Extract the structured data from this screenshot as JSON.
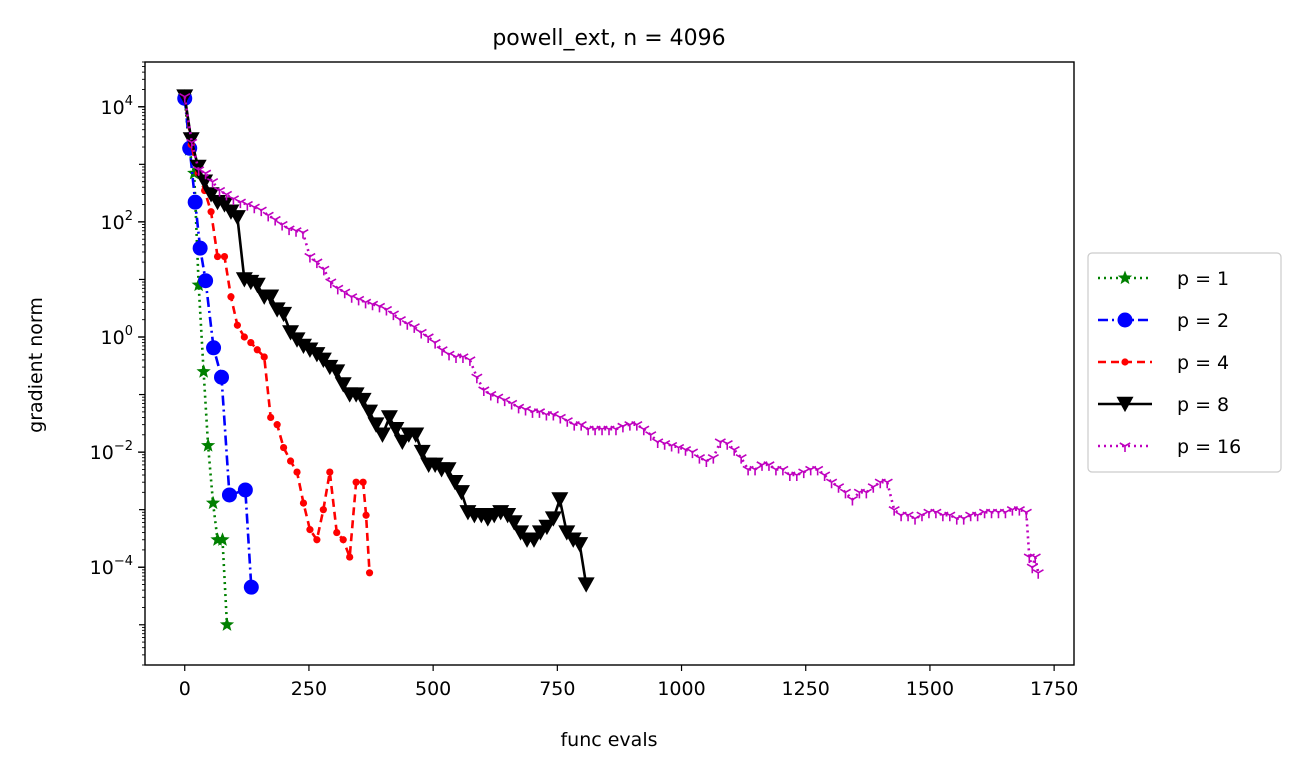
{
  "chart_data": {
    "type": "line",
    "title": "powell_ext, n = 4096",
    "xlabel": "func evals",
    "ylabel": "gradient norm",
    "xlim": [
      -80,
      1790
    ],
    "ylim": [
      2e-06,
      60000
    ],
    "yscale": "log",
    "grid": false,
    "legend_position": "outside-right",
    "x_ticks": [
      0,
      250,
      500,
      750,
      1000,
      1250,
      1500,
      1750
    ],
    "x_tick_labels": [
      "0",
      "250",
      "500",
      "750",
      "1000",
      "1250",
      "1500",
      "1750"
    ],
    "y_ticks": [
      0.0001,
      0.01,
      1,
      100,
      10000
    ],
    "y_tick_exponents": [
      "−4",
      "−2",
      "0",
      "2",
      "4"
    ],
    "y_tick_base": "10",
    "series": [
      {
        "name": "p = 1",
        "color": "#008000",
        "dash": "dotted",
        "marker": "star",
        "x": [
          0,
          9,
          19,
          28,
          38,
          47,
          57,
          66,
          76,
          85
        ],
        "y": [
          15000,
          1800,
          700,
          8,
          0.25,
          0.013,
          0.0013,
          0.0003,
          0.0003,
          1e-05
        ]
      },
      {
        "name": "p = 2",
        "color": "#0000ff",
        "dash": "dashdot",
        "marker": "circle",
        "x": [
          0,
          10,
          21,
          31,
          42,
          58,
          74,
          90,
          122,
          134
        ],
        "y": [
          14000,
          1900,
          220,
          35,
          9.5,
          0.65,
          0.2,
          0.0018,
          0.0022,
          4.5e-05
        ]
      },
      {
        "name": "p = 4",
        "color": "#ff0000",
        "dash": "dashed",
        "marker": "point",
        "x": [
          0,
          13,
          27,
          40,
          53,
          66,
          80,
          93,
          106,
          120,
          133,
          146,
          160,
          173,
          186,
          199,
          213,
          226,
          239,
          252,
          266,
          279,
          292,
          306,
          319,
          332,
          345,
          359,
          365,
          372
        ],
        "y": [
          15000,
          2200,
          700,
          350,
          150,
          25,
          25,
          5,
          1.6,
          1.0,
          0.8,
          0.6,
          0.45,
          0.04,
          0.03,
          0.012,
          0.007,
          0.0045,
          0.0013,
          0.00045,
          0.0003,
          0.001,
          0.0045,
          0.0004,
          0.0003,
          0.00015,
          0.003,
          0.003,
          0.0008,
          8e-05
        ]
      },
      {
        "name": "p = 8",
        "color": "#000000",
        "dash": "solid",
        "marker": "triangle-down",
        "x": [
          0,
          13,
          27,
          40,
          53,
          66,
          80,
          93,
          106,
          120,
          133,
          146,
          160,
          173,
          186,
          199,
          213,
          226,
          239,
          252,
          266,
          279,
          292,
          306,
          319,
          332,
          345,
          359,
          372,
          385,
          398,
          412,
          425,
          438,
          451,
          465,
          478,
          491,
          504,
          517,
          530,
          544,
          557,
          570,
          583,
          597,
          610,
          623,
          636,
          650,
          663,
          676,
          689,
          703,
          716,
          729,
          742,
          755,
          769,
          782,
          795,
          808
        ],
        "y": [
          15000,
          2700,
          900,
          500,
          300,
          220,
          200,
          150,
          120,
          10,
          9,
          8,
          5,
          5,
          3,
          2.5,
          1.2,
          0.9,
          0.7,
          0.6,
          0.5,
          0.4,
          0.3,
          0.25,
          0.15,
          0.1,
          0.1,
          0.08,
          0.05,
          0.03,
          0.02,
          0.04,
          0.025,
          0.015,
          0.02,
          0.02,
          0.01,
          0.006,
          0.006,
          0.005,
          0.005,
          0.003,
          0.002,
          0.0009,
          0.0008,
          0.0008,
          0.0007,
          0.0008,
          0.0009,
          0.0008,
          0.0006,
          0.0004,
          0.0003,
          0.0003,
          0.0004,
          0.0005,
          0.0007,
          0.0015,
          0.0004,
          0.0003,
          0.00025,
          5e-05
        ]
      },
      {
        "name": "p = 16",
        "color": "#bf00bf",
        "dash": "dotted",
        "marker": "tri-down",
        "x": [
          0,
          14,
          28,
          42,
          56,
          70,
          84,
          98,
          112,
          126,
          140,
          154,
          168,
          182,
          196,
          210,
          224,
          238,
          252,
          266,
          280,
          294,
          308,
          322,
          336,
          350,
          364,
          378,
          392,
          406,
          420,
          434,
          448,
          462,
          476,
          490,
          504,
          518,
          532,
          546,
          560,
          574,
          588,
          602,
          616,
          630,
          644,
          658,
          672,
          686,
          700,
          714,
          728,
          742,
          756,
          770,
          784,
          798,
          812,
          826,
          840,
          854,
          868,
          882,
          896,
          910,
          924,
          938,
          952,
          966,
          980,
          994,
          1008,
          1022,
          1036,
          1050,
          1064,
          1078,
          1092,
          1106,
          1120,
          1134,
          1148,
          1162,
          1176,
          1190,
          1204,
          1218,
          1232,
          1246,
          1260,
          1274,
          1288,
          1302,
          1316,
          1330,
          1344,
          1358,
          1372,
          1386,
          1400,
          1414,
          1428,
          1442,
          1456,
          1470,
          1484,
          1498,
          1512,
          1526,
          1540,
          1554,
          1568,
          1582,
          1596,
          1610,
          1624,
          1638,
          1652,
          1666,
          1680,
          1694,
          1700,
          1706,
          1712,
          1718
        ],
        "y": [
          15000,
          2400,
          800,
          700,
          500,
          350,
          300,
          250,
          220,
          200,
          180,
          160,
          130,
          110,
          90,
          75,
          70,
          65,
          25,
          20,
          15,
          9,
          7,
          6,
          5,
          4.5,
          4,
          3.7,
          3.4,
          3,
          2.5,
          2,
          1.7,
          1.5,
          1.2,
          1,
          0.8,
          0.6,
          0.5,
          0.45,
          0.45,
          0.4,
          0.2,
          0.12,
          0.1,
          0.09,
          0.08,
          0.07,
          0.06,
          0.055,
          0.05,
          0.05,
          0.045,
          0.045,
          0.04,
          0.035,
          0.03,
          0.03,
          0.025,
          0.025,
          0.025,
          0.025,
          0.025,
          0.028,
          0.03,
          0.03,
          0.025,
          0.02,
          0.015,
          0.014,
          0.013,
          0.012,
          0.011,
          0.01,
          0.008,
          0.007,
          0.008,
          0.015,
          0.014,
          0.011,
          0.008,
          0.005,
          0.005,
          0.006,
          0.006,
          0.005,
          0.005,
          0.004,
          0.004,
          0.0045,
          0.005,
          0.005,
          0.004,
          0.003,
          0.0025,
          0.002,
          0.0015,
          0.002,
          0.002,
          0.0025,
          0.003,
          0.003,
          0.001,
          0.0008,
          0.0008,
          0.0007,
          0.0008,
          0.0009,
          0.0009,
          0.0008,
          0.0008,
          0.0007,
          0.0007,
          0.0008,
          0.0008,
          0.0009,
          0.0009,
          0.0009,
          0.0009,
          0.001,
          0.001,
          0.0009,
          0.00015,
          0.0001,
          0.00015,
          8e-05
        ]
      }
    ]
  }
}
